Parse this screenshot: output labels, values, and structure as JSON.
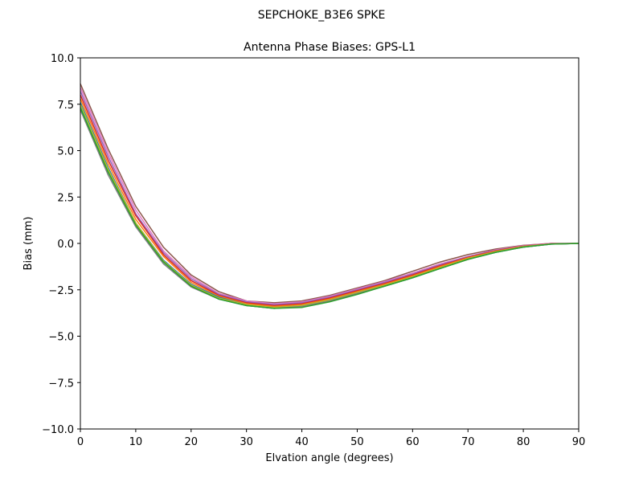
{
  "suptitle": "SEPCHOKE_B3E6   SPKE",
  "chart_data": {
    "type": "line",
    "title": "Antenna Phase Biases: GPS-L1",
    "xlabel": "Elvation angle (degrees)",
    "ylabel": "Bias (mm)",
    "xlim": [
      0,
      90
    ],
    "ylim": [
      -10,
      10
    ],
    "xticks": [
      0,
      10,
      20,
      30,
      40,
      50,
      60,
      70,
      80,
      90
    ],
    "yticks": [
      10.0,
      7.5,
      5.0,
      2.5,
      0.0,
      -2.5,
      -5.0,
      -7.5,
      -10.0
    ],
    "xtick_labels": [
      "0",
      "10",
      "20",
      "30",
      "40",
      "50",
      "60",
      "70",
      "80",
      "90"
    ],
    "ytick_labels": [
      "10.0",
      "7.5",
      "5.0",
      "2.5",
      "0.0",
      "−2.5",
      "−5.0",
      "−7.5",
      "−10.0"
    ],
    "grid": false,
    "x": [
      0,
      5,
      10,
      15,
      20,
      25,
      30,
      35,
      40,
      45,
      50,
      55,
      60,
      65,
      70,
      75,
      80,
      85,
      90
    ],
    "series": [
      {
        "color": "#8c564b",
        "values": [
          8.6,
          5.1,
          2.0,
          -0.2,
          -1.7,
          -2.6,
          -3.1,
          -3.2,
          -3.1,
          -2.8,
          -2.4,
          -2.0,
          -1.5,
          -1.0,
          -0.6,
          -0.3,
          -0.1,
          0.0,
          0.0
        ]
      },
      {
        "color": "#e377c2",
        "values": [
          8.4,
          4.9,
          1.8,
          -0.4,
          -1.8,
          -2.7,
          -3.1,
          -3.25,
          -3.15,
          -2.85,
          -2.45,
          -2.05,
          -1.6,
          -1.1,
          -0.7,
          -0.35,
          -0.12,
          0.0,
          0.0
        ]
      },
      {
        "color": "#9467bd",
        "values": [
          8.2,
          4.7,
          1.6,
          -0.5,
          -1.9,
          -2.75,
          -3.15,
          -3.3,
          -3.2,
          -2.9,
          -2.5,
          -2.1,
          -1.65,
          -1.15,
          -0.72,
          -0.38,
          -0.14,
          -0.02,
          0.0
        ]
      },
      {
        "color": "#d62728",
        "values": [
          8.0,
          4.5,
          1.5,
          -0.6,
          -2.0,
          -2.8,
          -3.2,
          -3.35,
          -3.25,
          -2.95,
          -2.55,
          -2.15,
          -1.7,
          -1.2,
          -0.75,
          -0.4,
          -0.15,
          -0.02,
          0.0
        ]
      },
      {
        "color": "#ff7f0e",
        "values": [
          7.8,
          4.3,
          1.3,
          -0.7,
          -2.1,
          -2.85,
          -3.25,
          -3.4,
          -3.3,
          -3.0,
          -2.6,
          -2.2,
          -1.75,
          -1.25,
          -0.78,
          -0.42,
          -0.16,
          -0.03,
          0.0
        ]
      },
      {
        "color": "#1f77b4",
        "values": [
          7.6,
          4.1,
          1.1,
          -0.9,
          -2.2,
          -2.9,
          -3.3,
          -3.45,
          -3.35,
          -3.05,
          -2.65,
          -2.25,
          -1.8,
          -1.3,
          -0.82,
          -0.45,
          -0.18,
          -0.03,
          0.0
        ]
      },
      {
        "color": "#17becf",
        "values": [
          7.4,
          3.9,
          1.0,
          -1.0,
          -2.3,
          -3.0,
          -3.35,
          -3.5,
          -3.4,
          -3.1,
          -2.7,
          -2.3,
          -1.85,
          -1.35,
          -0.85,
          -0.48,
          -0.2,
          -0.04,
          0.0
        ]
      },
      {
        "color": "#bcbd22",
        "values": [
          7.5,
          4.0,
          1.1,
          -0.95,
          -2.25,
          -2.95,
          -3.3,
          -3.45,
          -3.35,
          -3.05,
          -2.65,
          -2.25,
          -1.8,
          -1.3,
          -0.82,
          -0.45,
          -0.18,
          -0.03,
          0.0
        ]
      },
      {
        "color": "#7f7f7f",
        "values": [
          7.2,
          3.7,
          0.9,
          -1.1,
          -2.35,
          -3.0,
          -3.35,
          -3.5,
          -3.4,
          -3.1,
          -2.7,
          -2.3,
          -1.85,
          -1.35,
          -0.86,
          -0.48,
          -0.2,
          -0.04,
          0.0
        ]
      },
      {
        "color": "#2ca02c",
        "values": [
          7.3,
          3.85,
          1.0,
          -1.0,
          -2.3,
          -3.0,
          -3.35,
          -3.5,
          -3.45,
          -3.15,
          -2.75,
          -2.3,
          -1.85,
          -1.35,
          -0.86,
          -0.48,
          -0.2,
          -0.04,
          0.0
        ]
      }
    ]
  }
}
